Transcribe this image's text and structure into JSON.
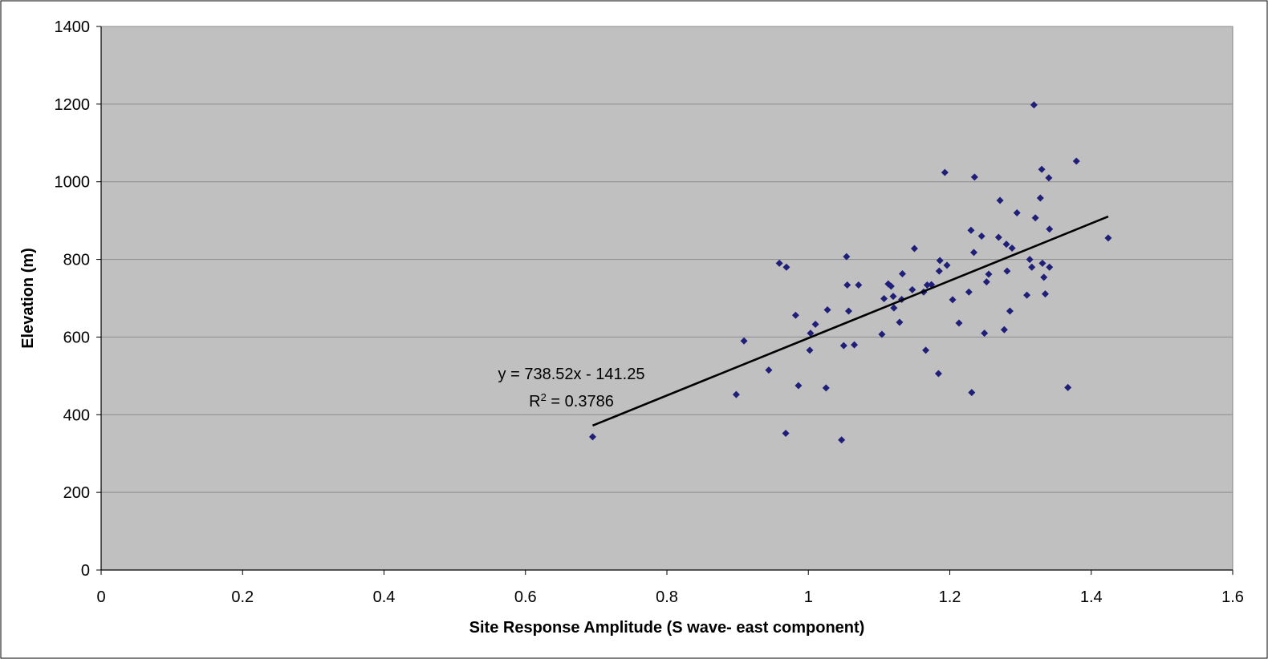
{
  "chart_data": {
    "type": "scatter",
    "title": "",
    "xlabel": "Site Response Amplitude (S wave- east component)",
    "ylabel": "Elevation (m)",
    "xlim": [
      0,
      1.6
    ],
    "ylim": [
      0,
      1400
    ],
    "x_ticks": [
      0,
      0.2,
      0.4,
      0.6,
      0.8,
      1,
      1.2,
      1.4,
      1.6
    ],
    "y_ticks": [
      0,
      200,
      400,
      600,
      800,
      1000,
      1200,
      1400
    ],
    "x_tick_labels": [
      "0",
      "0.2",
      "0.4",
      "0.6",
      "0.8",
      "1",
      "1.2",
      "1.4",
      "1.6"
    ],
    "y_tick_labels": [
      "0",
      "200",
      "400",
      "600",
      "800",
      "1000",
      "1200",
      "1400"
    ],
    "grid": {
      "horizontal": true,
      "vertical": false
    },
    "legend": "none",
    "colors": {
      "plot_background": "#c0c0c0",
      "marker": "#1f1f7a",
      "trendline": "#000000",
      "gridline": "#8c8c8c"
    },
    "marker": "diamond",
    "series": [
      {
        "points": [
          [
            0.695,
            343
          ],
          [
            0.898,
            452
          ],
          [
            0.909,
            590
          ],
          [
            0.944,
            515
          ],
          [
            0.959,
            790
          ],
          [
            0.968,
            352
          ],
          [
            0.969,
            780
          ],
          [
            0.982,
            656
          ],
          [
            0.986,
            475
          ],
          [
            1.002,
            566
          ],
          [
            1.003,
            610
          ],
          [
            1.01,
            633
          ],
          [
            1.025,
            469
          ],
          [
            1.027,
            670
          ],
          [
            1.047,
            335
          ],
          [
            1.05,
            578
          ],
          [
            1.054,
            807
          ],
          [
            1.055,
            734
          ],
          [
            1.057,
            667
          ],
          [
            1.065,
            580
          ],
          [
            1.071,
            734
          ],
          [
            1.104,
            607
          ],
          [
            1.107,
            699
          ],
          [
            1.113,
            737
          ],
          [
            1.117,
            731
          ],
          [
            1.12,
            705
          ],
          [
            1.121,
            675
          ],
          [
            1.129,
            638
          ],
          [
            1.132,
            697
          ],
          [
            1.133,
            763
          ],
          [
            1.147,
            722
          ],
          [
            1.15,
            828
          ],
          [
            1.163,
            716
          ],
          [
            1.166,
            566
          ],
          [
            1.168,
            734
          ],
          [
            1.174,
            735
          ],
          [
            1.184,
            506
          ],
          [
            1.185,
            770
          ],
          [
            1.186,
            797
          ],
          [
            1.193,
            1024
          ],
          [
            1.196,
            785
          ],
          [
            1.204,
            696
          ],
          [
            1.213,
            636
          ],
          [
            1.227,
            716
          ],
          [
            1.23,
            875
          ],
          [
            1.231,
            457
          ],
          [
            1.234,
            818
          ],
          [
            1.235,
            1012
          ],
          [
            1.245,
            860
          ],
          [
            1.249,
            610
          ],
          [
            1.252,
            742
          ],
          [
            1.255,
            762
          ],
          [
            1.269,
            857
          ],
          [
            1.271,
            952
          ],
          [
            1.277,
            619
          ],
          [
            1.28,
            839
          ],
          [
            1.281,
            770
          ],
          [
            1.285,
            667
          ],
          [
            1.288,
            829
          ],
          [
            1.295,
            920
          ],
          [
            1.309,
            708
          ],
          [
            1.313,
            800
          ],
          [
            1.316,
            780
          ],
          [
            1.319,
            1198
          ],
          [
            1.321,
            907
          ],
          [
            1.328,
            958
          ],
          [
            1.33,
            1032
          ],
          [
            1.331,
            790
          ],
          [
            1.333,
            754
          ],
          [
            1.335,
            711
          ],
          [
            1.34,
            1010
          ],
          [
            1.341,
            878
          ],
          [
            1.341,
            780
          ],
          [
            1.367,
            470
          ],
          [
            1.379,
            1053
          ],
          [
            1.424,
            855
          ]
        ]
      }
    ],
    "trendline": {
      "slope": 738.52,
      "intercept": -141.25,
      "x_range": [
        0.695,
        1.424
      ],
      "equation_text": "y = 738.52x - 141.25",
      "r2_prefix": "R",
      "r2_sup": "2",
      "r2_suffix": " = 0.3786"
    }
  }
}
